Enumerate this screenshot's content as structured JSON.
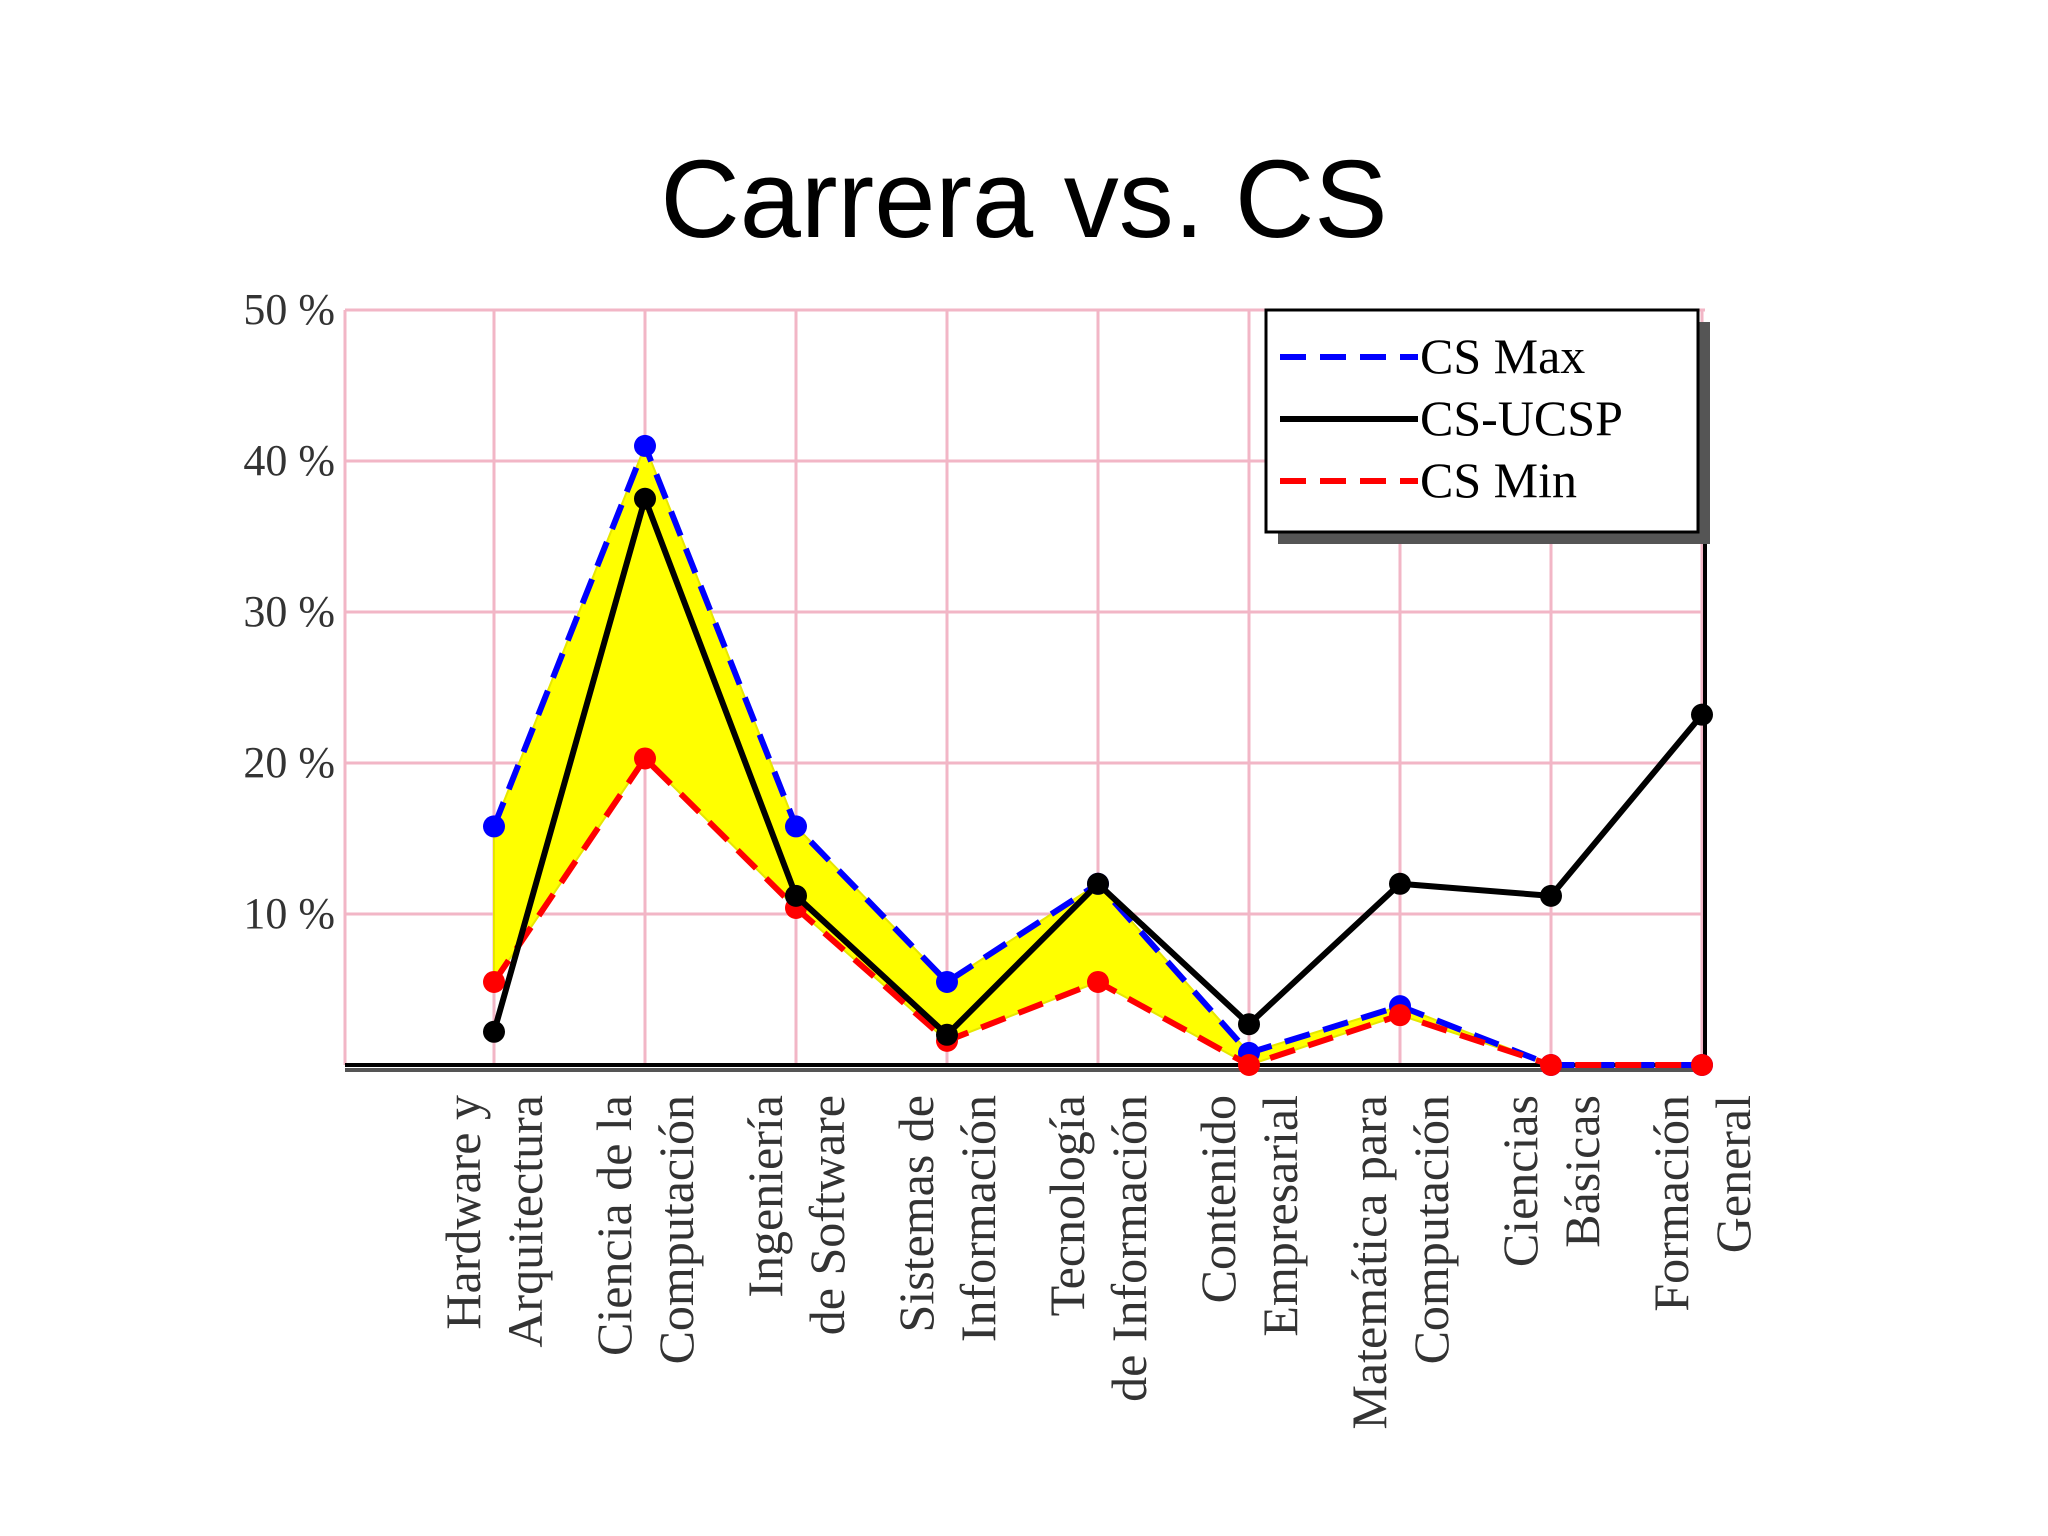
{
  "slide": {
    "title": "Carrera vs. CS"
  },
  "colors": {
    "max": "#0000ff",
    "ucsp": "#000000",
    "min": "#ff0000",
    "band_fill": "#ffff00",
    "band_edge": "#e6e600",
    "grid": "#f2b6c6",
    "axis": "#000000"
  },
  "chart_data": {
    "type": "line",
    "categories": [
      [
        "Hardware y",
        "Arquitectura"
      ],
      [
        "Ciencia de la",
        "Computación"
      ],
      [
        "Ingeniería",
        "de Software"
      ],
      [
        "Sistemas de",
        "Información"
      ],
      [
        "Tecnología",
        "de Información"
      ],
      [
        "Contenido",
        "Empresarial"
      ],
      [
        "Matemática para",
        "Computación"
      ],
      [
        "Ciencias",
        "Básicas"
      ],
      [
        "Formación",
        "General"
      ]
    ],
    "series": [
      {
        "name": "CS Max",
        "style": "dashed",
        "color": "#0000ff",
        "values": [
          15.8,
          41.0,
          15.8,
          5.5,
          12.0,
          0.8,
          3.9,
          0,
          0
        ]
      },
      {
        "name": "CS-UCSP",
        "style": "solid",
        "color": "#000000",
        "values": [
          2.2,
          37.5,
          11.2,
          2.0,
          12.0,
          2.7,
          12.0,
          11.2,
          23.2
        ]
      },
      {
        "name": "CS Min",
        "style": "dashed",
        "color": "#ff0000",
        "values": [
          5.5,
          20.3,
          10.4,
          1.6,
          5.5,
          0,
          3.3,
          0,
          0
        ]
      }
    ],
    "band_between": [
      "CS Min",
      "CS Max"
    ],
    "ylim": [
      0,
      50
    ],
    "yticks": [
      10,
      20,
      30,
      40,
      50
    ],
    "ytick_labels": [
      "10 %",
      "20 %",
      "30 %",
      "40 %",
      "50 %"
    ],
    "grid": true,
    "legend_position": "top-right"
  }
}
